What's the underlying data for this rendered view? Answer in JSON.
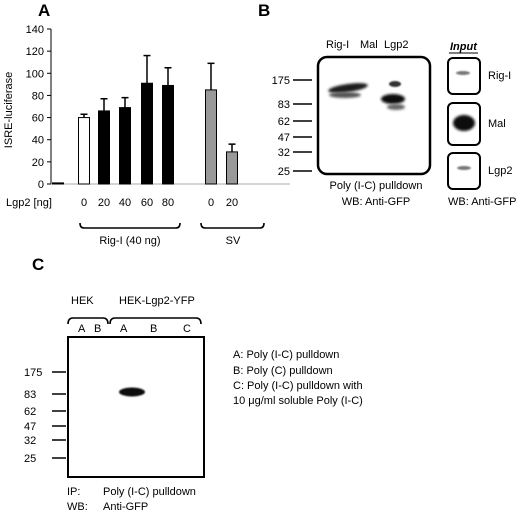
{
  "panel_a": {
    "letter": "A",
    "chart_data": {
      "type": "bar",
      "ylabel": "ISRE-luciferase",
      "ylim": [
        0,
        140
      ],
      "yticks": [
        0,
        20,
        40,
        60,
        80,
        100,
        120,
        140
      ],
      "xlabel": "Lgp2 [ng]",
      "categories": [
        "",
        "0",
        "20",
        "40",
        "60",
        "80",
        "0",
        "20"
      ],
      "values": [
        1,
        60,
        66,
        69,
        91,
        89,
        85,
        29
      ],
      "errors": [
        0,
        3,
        11,
        9,
        25,
        16,
        24,
        7
      ],
      "fills": [
        "#000000",
        "#ffffff",
        "#000000",
        "#000000",
        "#000000",
        "#000000",
        "#999999",
        "#999999"
      ],
      "groups": [
        {
          "label": "Rig-I (40 ng)"
        },
        {
          "label": "SV"
        }
      ]
    }
  },
  "panel_b": {
    "letter": "B",
    "lanes": [
      "Rig-I",
      "Mal",
      "Lgp2"
    ],
    "markers": [
      "175",
      "83",
      "62",
      "47",
      "32",
      "25"
    ],
    "caption1": "Poly (I-C) pulldown",
    "caption2": "WB: Anti-GFP",
    "input_title": "Input",
    "input_labels": [
      "Rig-I",
      "Mal",
      "Lgp2"
    ],
    "input_caption": "WB: Anti-GFP"
  },
  "panel_c": {
    "letter": "C",
    "group1": "HEK",
    "group2": "HEK-Lgp2-YFP",
    "lanes1": [
      "A",
      "B"
    ],
    "lanes2": [
      "A",
      "B",
      "C"
    ],
    "markers": [
      "175",
      "83",
      "62",
      "47",
      "32",
      "25"
    ],
    "legend": [
      "A: Poly (I-C) pulldown",
      "B: Poly (C) pulldown",
      "C: Poly (I-C) pulldown with",
      "10 μg/ml soluble Poly (I-C)"
    ],
    "ip_label": "IP:",
    "ip_value": "Poly (I-C) pulldown",
    "wb_label": "WB:",
    "wb_value": "Anti-GFP"
  }
}
